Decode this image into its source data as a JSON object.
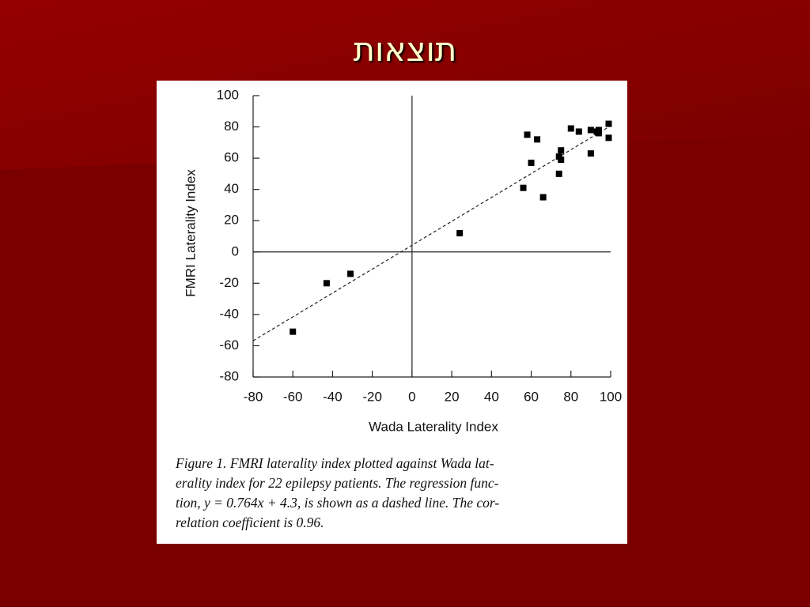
{
  "slide_title": "תוצאות",
  "chart_data": {
    "type": "scatter",
    "xlabel": "Wada Laterality Index",
    "ylabel": "FMRI Laterality Index",
    "x": [
      -60,
      -43,
      -31,
      24,
      56,
      58,
      60,
      63,
      66,
      74,
      74,
      75,
      75,
      80,
      84,
      90,
      90,
      93,
      94,
      94,
      99,
      99
    ],
    "values": [
      -51,
      -20,
      -14,
      12,
      41,
      75,
      57,
      72,
      35,
      50,
      61,
      65,
      59,
      79,
      77,
      63,
      78,
      77,
      78,
      76,
      82,
      73
    ],
    "color": "#000000",
    "xlim": [
      -80,
      100
    ],
    "xticks": [
      -80,
      -60,
      -40,
      -20,
      0,
      20,
      40,
      60,
      80,
      100
    ],
    "ylim": [
      -80,
      100
    ],
    "yticks": [
      -80,
      -60,
      -40,
      -20,
      0,
      20,
      40,
      60,
      80,
      100
    ],
    "regression": {
      "slope": 0.764,
      "intercept": 4.3
    },
    "caption": [
      "Figure 1.  FMRI laterality index plotted against Wada lat-",
      "erality index for 22 epilepsy patients. The regression func-",
      "tion, y = 0.764x + 4.3, is shown as a dashed line. The cor-",
      "relation coefficient is 0.96."
    ]
  }
}
